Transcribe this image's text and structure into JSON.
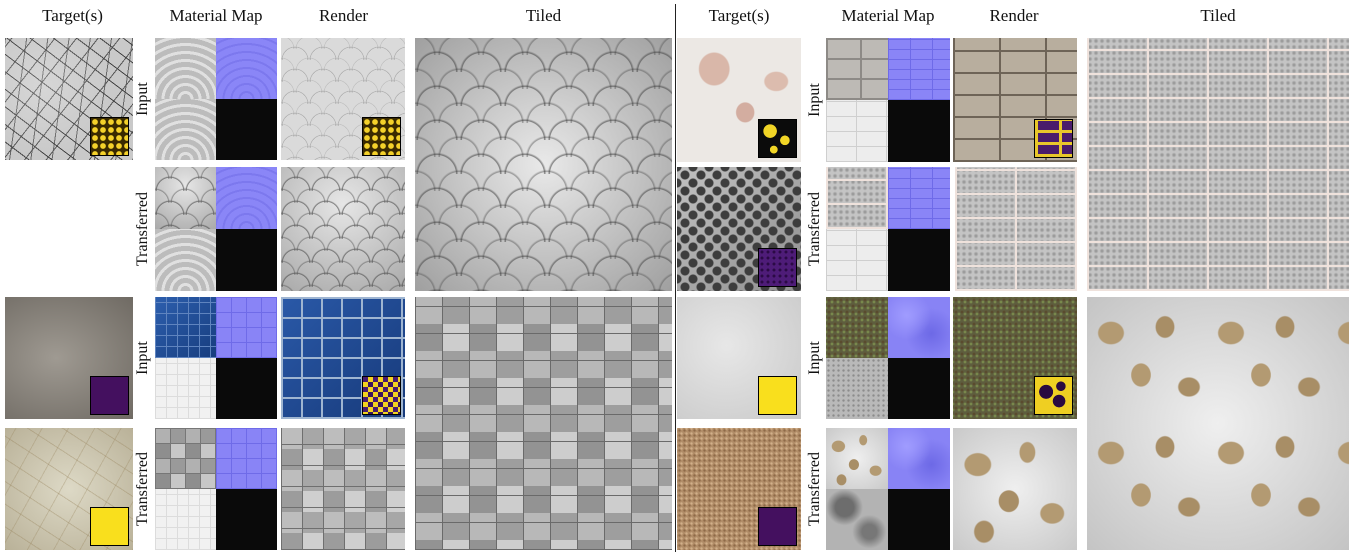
{
  "headers": {
    "left": {
      "targets": "Target(s)",
      "material_map": "Material Map",
      "render": "Render",
      "tiled": "Tiled"
    },
    "right": {
      "targets": "Target(s)",
      "material_map": "Material Map",
      "render": "Render",
      "tiled": "Tiled"
    }
  },
  "row_labels": {
    "input": "Input",
    "transferred": "Transferred"
  },
  "colors": {
    "normal_map": "#8883f6",
    "black": "#0a0a0a",
    "mask_yellow": "#f9df1d",
    "mask_purple": "#44105f"
  }
}
